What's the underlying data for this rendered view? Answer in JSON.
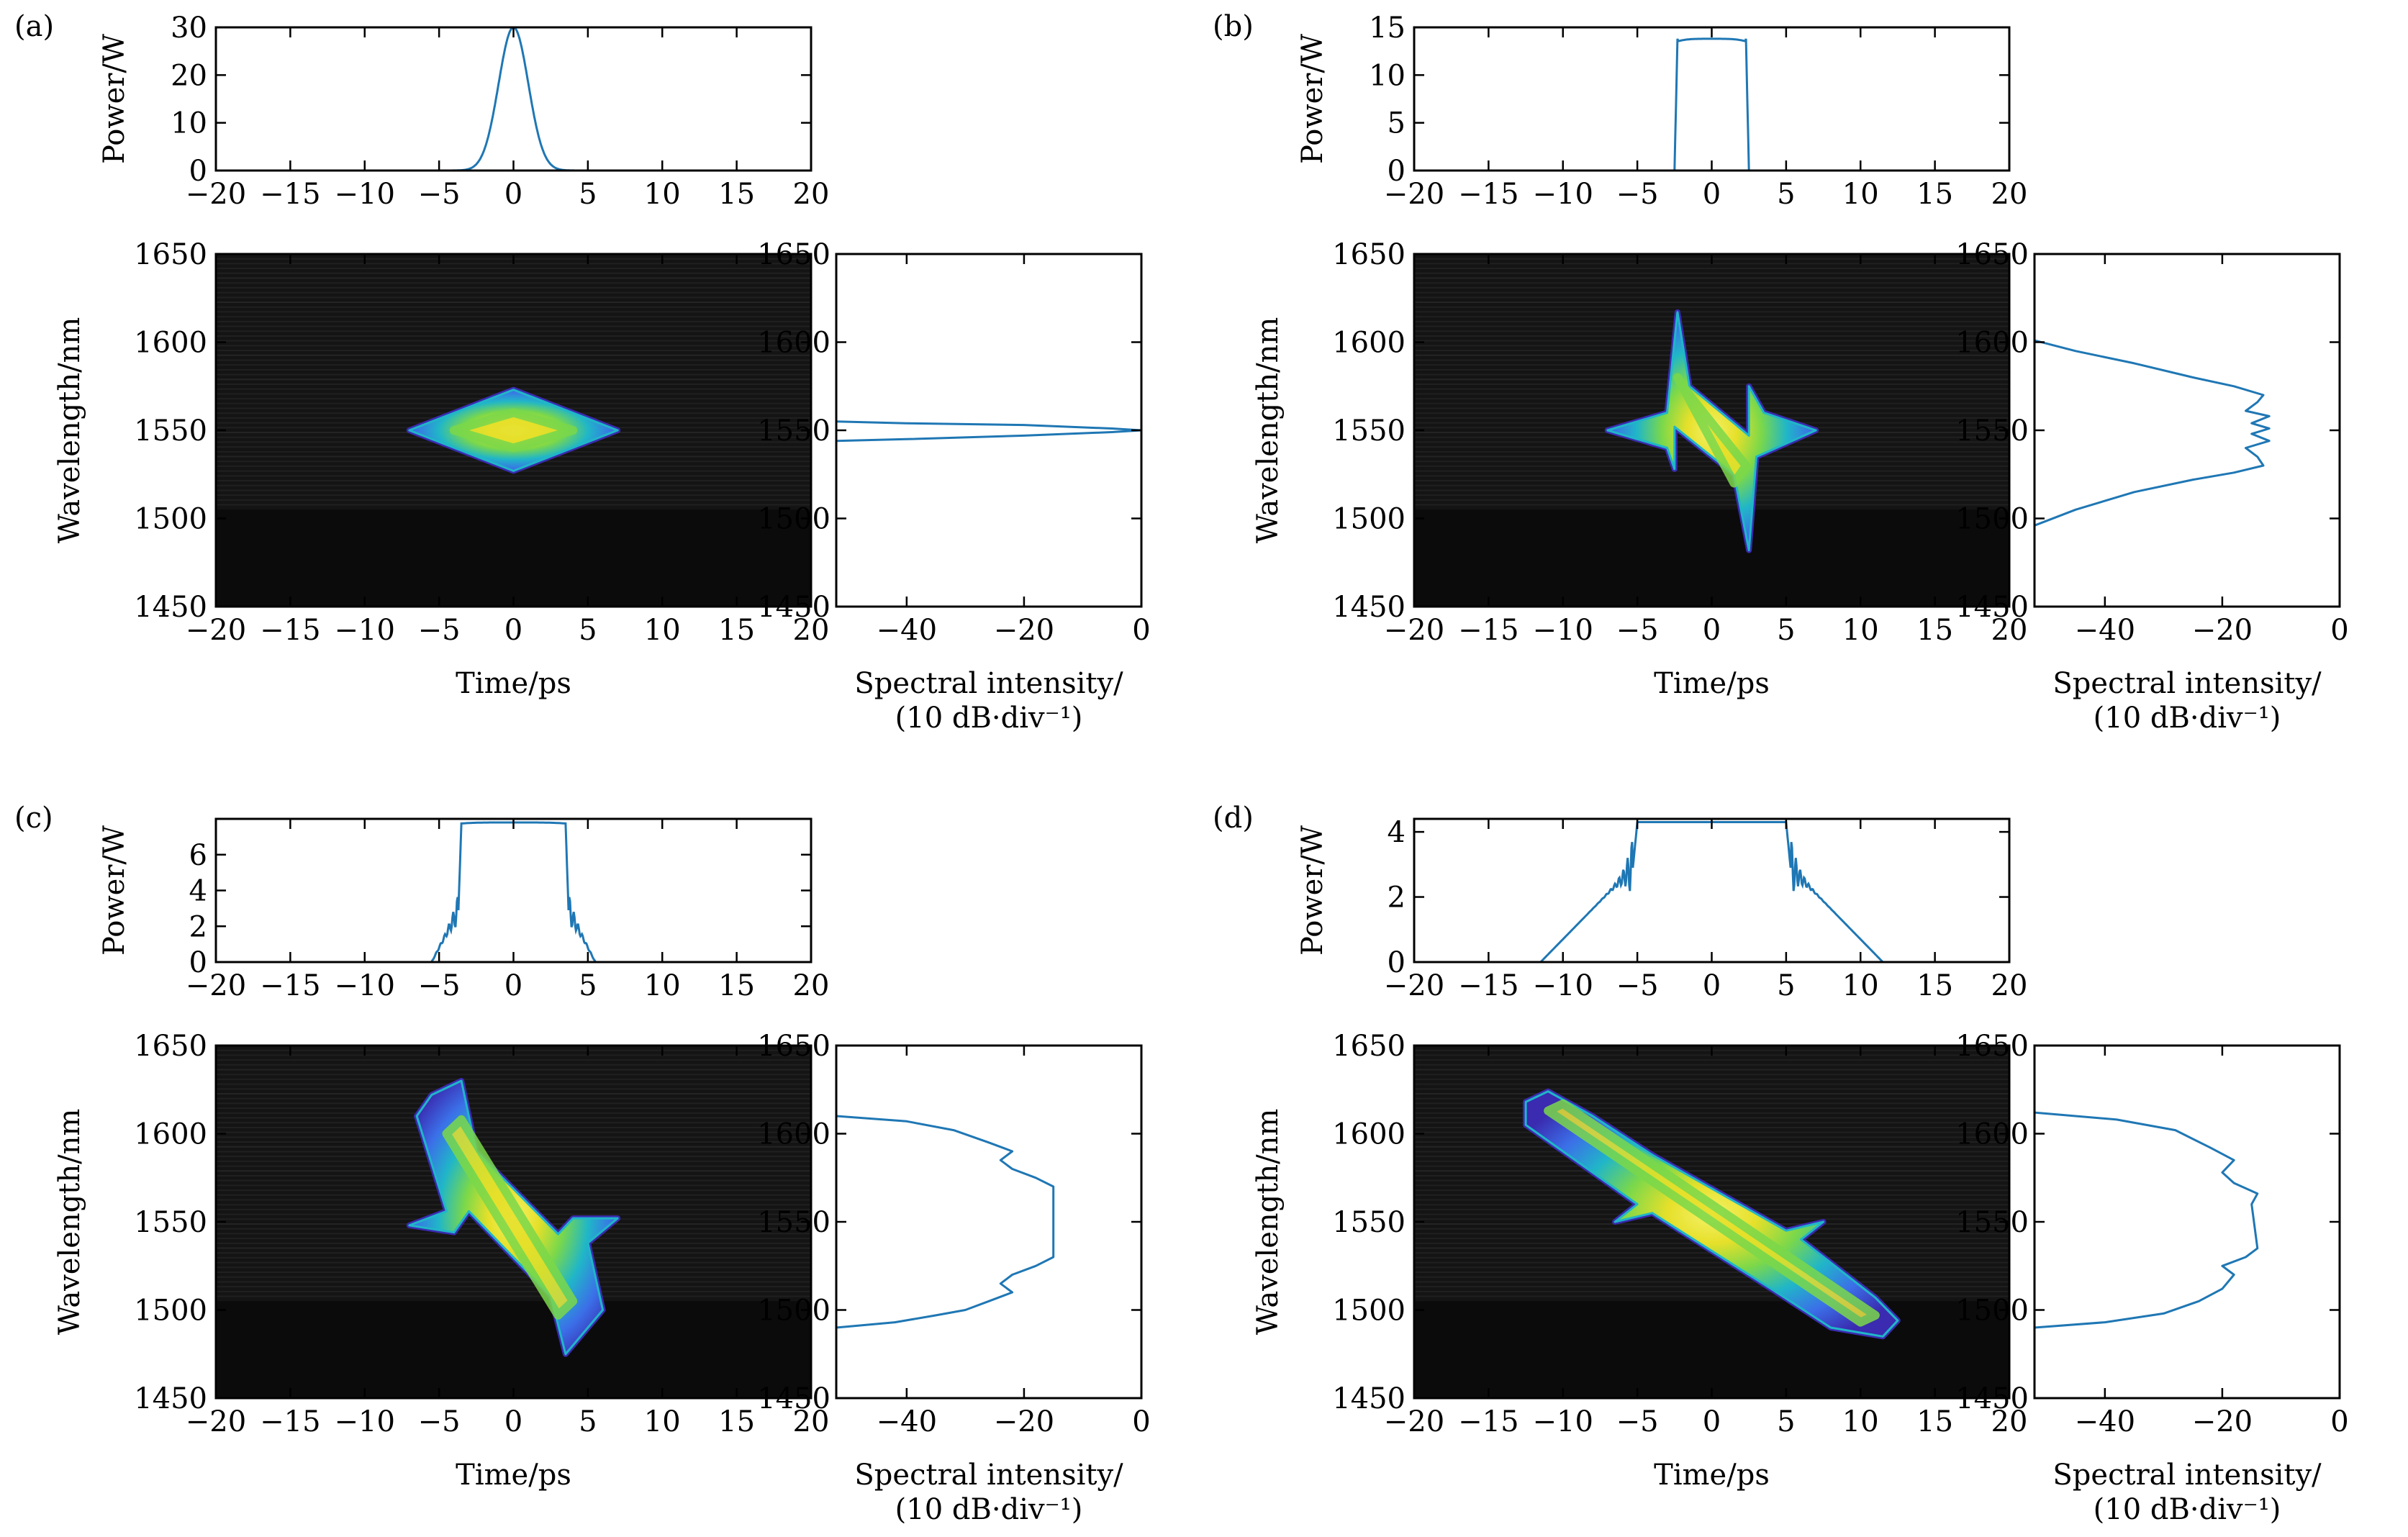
{
  "panels": [
    {
      "id": "a",
      "letter": "(a)",
      "power": {
        "ylabel": "Power/W",
        "yticks": [
          "0",
          "10",
          "20",
          "30"
        ],
        "ytick_values": [
          0,
          10,
          20,
          30
        ],
        "ylim": [
          0,
          30
        ],
        "xticks": [
          "−20",
          "−15",
          "−10",
          "−5",
          "0",
          "5",
          "10",
          "15",
          "20"
        ],
        "xtick_values": [
          -20,
          -15,
          -10,
          -5,
          0,
          5,
          10,
          15,
          20
        ],
        "xlim": [
          -20,
          20
        ],
        "profile": {
          "shape": "gauss",
          "peak": 30,
          "width": 1.0
        },
        "line_color": "#1f77b4"
      },
      "spectrogram": {
        "ylabel": "Wavelength/nm",
        "xlabel": "Time/ps",
        "yticks": [
          "1450",
          "1500",
          "1550",
          "1600",
          "1650"
        ],
        "ytick_values": [
          1450,
          1500,
          1550,
          1600,
          1650
        ],
        "ylim": [
          1450,
          1650
        ],
        "xticks": [
          "−20",
          "−15",
          "−10",
          "−5",
          "0",
          "5",
          "10",
          "15",
          "20"
        ],
        "xtick_values": [
          -20,
          -15,
          -10,
          -5,
          0,
          5,
          10,
          15,
          20
        ],
        "xlim": [
          -20,
          20
        ],
        "blob": [
          [
            -7,
            1550
          ],
          [
            0,
            1573
          ],
          [
            7,
            1550
          ],
          [
            0,
            1527
          ]
        ],
        "core": [
          [
            -4,
            1550
          ],
          [
            0,
            1560
          ],
          [
            4,
            1550
          ],
          [
            0,
            1540
          ]
        ]
      },
      "spectrum": {
        "xlabel_line1": "Spectral intensity/",
        "xlabel_line2": "(10 dB·div⁻¹)",
        "yticks": [
          "1450",
          "1500",
          "1550",
          "1600",
          "1650"
        ],
        "ytick_values": [
          1450,
          1500,
          1550,
          1600,
          1650
        ],
        "ylim": [
          1450,
          1650
        ],
        "xticks": [
          "−40",
          "−20",
          "0"
        ],
        "xtick_values": [
          -40,
          -20,
          0
        ],
        "xlim": [
          -52,
          0
        ],
        "curve": [
          [
            -52,
            1544
          ],
          [
            -40,
            1545
          ],
          [
            -20,
            1547
          ],
          [
            -5,
            1549
          ],
          [
            0,
            1550
          ],
          [
            -5,
            1551
          ],
          [
            -20,
            1553
          ],
          [
            -40,
            1554
          ],
          [
            -52,
            1555
          ]
        ]
      }
    },
    {
      "id": "b",
      "letter": "(b)",
      "power": {
        "ylabel": "Power/W",
        "yticks": [
          "0",
          "5",
          "10",
          "15"
        ],
        "ytick_values": [
          0,
          5,
          10,
          15
        ],
        "ylim": [
          0,
          15
        ],
        "xticks": [
          "−20",
          "−15",
          "−10",
          "−5",
          "0",
          "5",
          "10",
          "15",
          "20"
        ],
        "xtick_values": [
          -20,
          -15,
          -10,
          -5,
          0,
          5,
          10,
          15,
          20
        ],
        "xlim": [
          -20,
          20
        ],
        "profile": {
          "shape": "flat",
          "peak": 13.8,
          "half": 2.3,
          "edge": 0.2,
          "roundness": 0.4
        },
        "line_color": "#1f77b4"
      },
      "spectrogram": {
        "ylabel": "Wavelength/nm",
        "xlabel": "Time/ps",
        "yticks": [
          "1450",
          "1500",
          "1550",
          "1600",
          "1650"
        ],
        "ytick_values": [
          1450,
          1500,
          1550,
          1600,
          1650
        ],
        "ylim": [
          1450,
          1650
        ],
        "xticks": [
          "−20",
          "−15",
          "−10",
          "−5",
          "0",
          "5",
          "10",
          "15",
          "20"
        ],
        "xtick_values": [
          -20,
          -15,
          -10,
          -5,
          0,
          5,
          10,
          15,
          20
        ],
        "xlim": [
          -20,
          20
        ],
        "blob": [
          [
            -7,
            1550
          ],
          [
            -3,
            1560
          ],
          [
            -2.3,
            1617
          ],
          [
            -1.5,
            1575
          ],
          [
            2.5,
            1547
          ],
          [
            2.5,
            1575
          ],
          [
            3.5,
            1560
          ],
          [
            7,
            1550
          ],
          [
            3,
            1535
          ],
          [
            2.5,
            1482
          ],
          [
            1.5,
            1525
          ],
          [
            -2.5,
            1552
          ],
          [
            -2.5,
            1528
          ],
          [
            -3,
            1540
          ]
        ],
        "core": [
          [
            -2.3,
            1580
          ],
          [
            -1.5,
            1570
          ],
          [
            2.3,
            1530
          ],
          [
            1.5,
            1520
          ]
        ]
      },
      "spectrum": {
        "xlabel_line1": "Spectral intensity/",
        "xlabel_line2": "(10 dB·div⁻¹)",
        "yticks": [
          "1450",
          "1500",
          "1550",
          "1600",
          "1650"
        ],
        "ytick_values": [
          1450,
          1500,
          1550,
          1600,
          1650
        ],
        "ylim": [
          1450,
          1650
        ],
        "xticks": [
          "−40",
          "−20",
          "0"
        ],
        "xtick_values": [
          -40,
          -20,
          0
        ],
        "xlim": [
          -52,
          0
        ],
        "curve": [
          [
            -52,
            1496
          ],
          [
            -45,
            1505
          ],
          [
            -35,
            1515
          ],
          [
            -25,
            1522
          ],
          [
            -18,
            1526
          ],
          [
            -13,
            1530
          ],
          [
            -14,
            1535
          ],
          [
            -16,
            1540
          ],
          [
            -12,
            1544
          ],
          [
            -15,
            1548
          ],
          [
            -12,
            1551
          ],
          [
            -15,
            1554
          ],
          [
            -12,
            1558
          ],
          [
            -16,
            1561
          ],
          [
            -14,
            1566
          ],
          [
            -13,
            1570
          ],
          [
            -18,
            1575
          ],
          [
            -25,
            1580
          ],
          [
            -35,
            1588
          ],
          [
            -45,
            1595
          ],
          [
            -52,
            1601
          ]
        ]
      }
    },
    {
      "id": "c",
      "letter": "(c)",
      "power": {
        "ylabel": "Power/W",
        "yticks": [
          "0",
          "2",
          "4",
          "6"
        ],
        "ytick_values": [
          0,
          2,
          4,
          6
        ],
        "ylim": [
          0,
          8
        ],
        "xticks": [
          "−20",
          "−15",
          "−10",
          "−5",
          "0",
          "5",
          "10",
          "15",
          "20"
        ],
        "xtick_values": [
          -20,
          -15,
          -10,
          -5,
          0,
          5,
          10,
          15,
          20
        ],
        "xlim": [
          -20,
          20
        ],
        "profile": {
          "shape": "flat",
          "peak": 7.8,
          "half": 3.5,
          "edge": 0.2,
          "roundness": 0.15,
          "wings": {
            "start": 5.5,
            "height": 2.9,
            "ripple": true
          }
        },
        "line_color": "#1f77b4"
      },
      "spectrogram": {
        "ylabel": "Wavelength/nm",
        "xlabel": "Time/ps",
        "yticks": [
          "1450",
          "1500",
          "1550",
          "1600",
          "1650"
        ],
        "ytick_values": [
          1450,
          1500,
          1550,
          1600,
          1650
        ],
        "ylim": [
          1450,
          1650
        ],
        "xticks": [
          "−20",
          "−15",
          "−10",
          "−5",
          "0",
          "5",
          "10",
          "15",
          "20"
        ],
        "xtick_values": [
          -20,
          -15,
          -10,
          -5,
          0,
          5,
          10,
          15,
          20
        ],
        "xlim": [
          -20,
          20
        ],
        "blob": [
          [
            -7,
            1548
          ],
          [
            -4.5,
            1556
          ],
          [
            -6.5,
            1610
          ],
          [
            -5.5,
            1622
          ],
          [
            -3.5,
            1630
          ],
          [
            -2.5,
            1590
          ],
          [
            3,
            1543
          ],
          [
            4,
            1552
          ],
          [
            7,
            1552
          ],
          [
            5,
            1538
          ],
          [
            6,
            1500
          ],
          [
            5,
            1490
          ],
          [
            3.5,
            1475
          ],
          [
            2.5,
            1508
          ],
          [
            -3,
            1556
          ],
          [
            -4,
            1544
          ]
        ],
        "core": [
          [
            -4.5,
            1600
          ],
          [
            -3.5,
            1608
          ],
          [
            4,
            1505
          ],
          [
            3,
            1497
          ]
        ]
      },
      "spectrum": {
        "xlabel_line1": "Spectral intensity/",
        "xlabel_line2": "(10 dB·div⁻¹)",
        "yticks": [
          "1450",
          "1500",
          "1550",
          "1600",
          "1650"
        ],
        "ytick_values": [
          1450,
          1500,
          1550,
          1600,
          1650
        ],
        "ylim": [
          1450,
          1650
        ],
        "xticks": [
          "−40",
          "−20",
          "0"
        ],
        "xtick_values": [
          -40,
          -20,
          0
        ],
        "xlim": [
          -52,
          0
        ],
        "curve": [
          [
            -52,
            1490
          ],
          [
            -42,
            1493
          ],
          [
            -35,
            1497
          ],
          [
            -30,
            1500
          ],
          [
            -26,
            1505
          ],
          [
            -22,
            1510
          ],
          [
            -24,
            1515
          ],
          [
            -22,
            1520
          ],
          [
            -18,
            1525
          ],
          [
            -15,
            1530
          ],
          [
            -15,
            1570
          ],
          [
            -18,
            1575
          ],
          [
            -22,
            1580
          ],
          [
            -24,
            1585
          ],
          [
            -22,
            1590
          ],
          [
            -26,
            1595
          ],
          [
            -32,
            1602
          ],
          [
            -40,
            1607
          ],
          [
            -52,
            1610
          ]
        ]
      }
    },
    {
      "id": "d",
      "letter": "(d)",
      "power": {
        "ylabel": "Power/W",
        "yticks": [
          "0",
          "2",
          "4"
        ],
        "ytick_values": [
          0,
          2,
          4
        ],
        "ylim": [
          0,
          4.4
        ],
        "xticks": [
          "−20",
          "−15",
          "−10",
          "−5",
          "0",
          "5",
          "10",
          "15",
          "20"
        ],
        "xtick_values": [
          -20,
          -15,
          -10,
          -5,
          0,
          5,
          10,
          15,
          20
        ],
        "xlim": [
          -20,
          20
        ],
        "profile": {
          "shape": "flat",
          "peak": 4.3,
          "half": 5.0,
          "edge": 0.3,
          "roundness": 0.0,
          "wings": {
            "start": 11.5,
            "height": 2.9,
            "ripple": true
          }
        },
        "line_color": "#1f77b4"
      },
      "spectrogram": {
        "ylabel": "Wavelength/nm",
        "xlabel": "Time/ps",
        "yticks": [
          "1450",
          "1500",
          "1550",
          "1600",
          "1650"
        ],
        "ytick_values": [
          1450,
          1500,
          1550,
          1600,
          1650
        ],
        "ylim": [
          1450,
          1650
        ],
        "xticks": [
          "−20",
          "−15",
          "−10",
          "−5",
          "0",
          "5",
          "10",
          "15",
          "20"
        ],
        "xtick_values": [
          -20,
          -15,
          -10,
          -5,
          0,
          5,
          10,
          15,
          20
        ],
        "xlim": [
          -20,
          20
        ],
        "blob": [
          [
            -12.5,
            1618
          ],
          [
            -11,
            1624
          ],
          [
            -8,
            1610
          ],
          [
            -4,
            1588
          ],
          [
            5,
            1545
          ],
          [
            7.5,
            1550
          ],
          [
            6,
            1540
          ],
          [
            11,
            1507
          ],
          [
            12.5,
            1494
          ],
          [
            11.5,
            1485
          ],
          [
            8,
            1490
          ],
          [
            4,
            1512
          ],
          [
            -4,
            1555
          ],
          [
            -6.5,
            1550
          ],
          [
            -5,
            1560
          ],
          [
            -10,
            1590
          ],
          [
            -12.5,
            1605
          ]
        ],
        "core": [
          [
            -11,
            1613
          ],
          [
            -10,
            1617
          ],
          [
            11,
            1497
          ],
          [
            10,
            1493
          ]
        ]
      },
      "spectrum": {
        "xlabel_line1": "Spectral intensity/",
        "xlabel_line2": "(10 dB·div⁻¹)",
        "yticks": [
          "1450",
          "1500",
          "1550",
          "1600",
          "1650"
        ],
        "ytick_values": [
          1450,
          1500,
          1550,
          1600,
          1650
        ],
        "ylim": [
          1450,
          1650
        ],
        "xticks": [
          "−40",
          "−20",
          "0"
        ],
        "xtick_values": [
          -40,
          -20,
          0
        ],
        "xlim": [
          -52,
          0
        ],
        "curve": [
          [
            -52,
            1490
          ],
          [
            -40,
            1493
          ],
          [
            -30,
            1498
          ],
          [
            -24,
            1505
          ],
          [
            -20,
            1512
          ],
          [
            -18,
            1520
          ],
          [
            -20,
            1525
          ],
          [
            -16,
            1530
          ],
          [
            -14,
            1535
          ],
          [
            -15,
            1560
          ],
          [
            -14,
            1566
          ],
          [
            -18,
            1572
          ],
          [
            -20,
            1578
          ],
          [
            -18,
            1585
          ],
          [
            -22,
            1592
          ],
          [
            -28,
            1602
          ],
          [
            -38,
            1608
          ],
          [
            -52,
            1612
          ]
        ]
      }
    }
  ],
  "colors": {
    "background_dark": "#141414",
    "line": "#1f77b4",
    "colormap": [
      "#3a2bb0",
      "#3b6fe8",
      "#20b6c8",
      "#7bd84a",
      "#e6e02a",
      "#f5f26a"
    ]
  }
}
